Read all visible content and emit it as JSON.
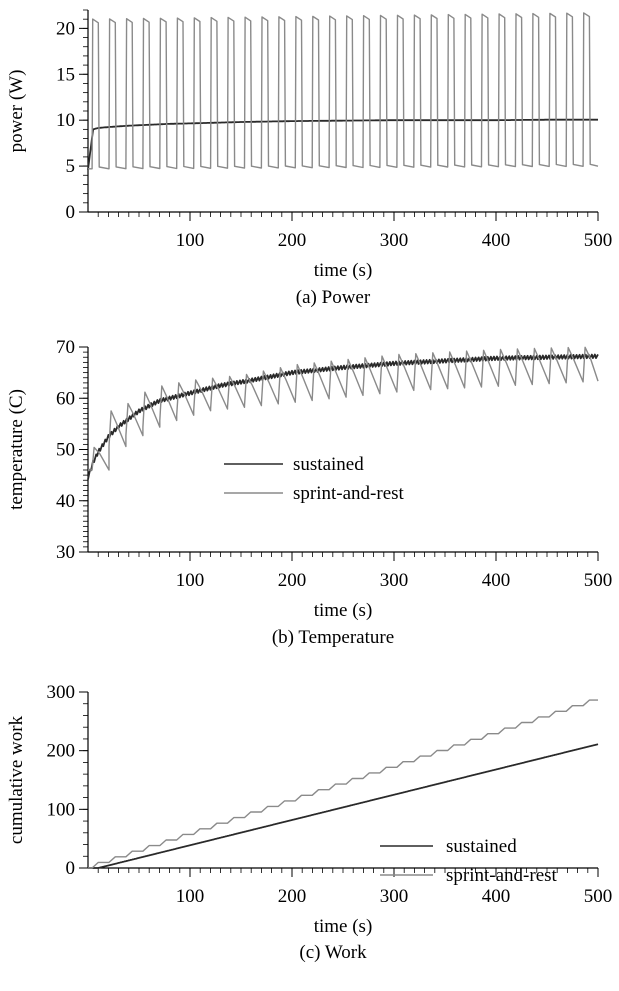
{
  "chart_data": [
    {
      "id": "power",
      "type": "line",
      "caption": "(a) Power",
      "xlabel": "time (s)",
      "ylabel": "power (W)",
      "xlim": [
        0,
        500
      ],
      "ylim": [
        0,
        22
      ],
      "xticks": [
        100,
        200,
        300,
        400,
        500
      ],
      "yticks": [
        0,
        5,
        10,
        15,
        20
      ],
      "legend": null,
      "series": [
        {
          "color": "#2a2a2a",
          "kind": "curve",
          "x": [
            0,
            5,
            10,
            20,
            40,
            60,
            80,
            100,
            150,
            200,
            250,
            300,
            350,
            400,
            450,
            500
          ],
          "values": [
            4.6,
            9.0,
            9.15,
            9.25,
            9.4,
            9.5,
            9.6,
            9.65,
            9.8,
            9.9,
            9.95,
            10.0,
            10.0,
            10.0,
            10.05,
            10.05
          ]
        },
        {
          "color": "#8a8a8a",
          "kind": "square-wave",
          "period_s": 16.6,
          "duty": 0.37,
          "start_s": 4,
          "high_W": 21.0,
          "high_end_W": 21.7,
          "low_W": 4.7,
          "low_end_W": 5.0
        }
      ]
    },
    {
      "id": "temperature",
      "type": "line",
      "caption": "(b) Temperature",
      "xlabel": "time (s)",
      "ylabel": "temperature (C)",
      "xlim": [
        0,
        500
      ],
      "ylim": [
        30,
        70
      ],
      "xticks": [
        100,
        200,
        300,
        400,
        500
      ],
      "yticks": [
        30,
        40,
        50,
        60,
        70
      ],
      "legend": {
        "position": "center",
        "entries": [
          "sustained",
          "sprint-and-rest"
        ]
      },
      "series": [
        {
          "name": "sustained",
          "color": "#2a2a2a",
          "kind": "curve",
          "x": [
            0,
            5,
            10,
            20,
            30,
            50,
            70,
            100,
            130,
            160,
            200,
            250,
            300,
            350,
            400,
            450,
            500
          ],
          "values": [
            44.5,
            47.5,
            49.5,
            52.5,
            54.5,
            57.5,
            59.5,
            61.0,
            62.5,
            63.5,
            65.0,
            66.0,
            66.8,
            67.3,
            67.8,
            68.0,
            68.2
          ]
        },
        {
          "name": "sprint-and-rest",
          "color": "#8a8a8a",
          "kind": "sawtooth",
          "period_s": 16.6,
          "start_s": 4,
          "x": [
            0,
            10,
            30,
            60,
            100,
            150,
            200,
            250,
            300,
            350,
            400,
            450,
            500
          ],
          "peak": [
            46,
            57,
            58,
            62,
            63.5,
            64.5,
            66.5,
            67.5,
            68.5,
            69,
            69.5,
            69.8,
            70
          ],
          "trough": [
            44,
            49,
            52,
            55,
            57.5,
            58.5,
            59.5,
            60.5,
            61.5,
            62,
            62.5,
            63,
            63.5
          ]
        }
      ]
    },
    {
      "id": "work",
      "type": "line",
      "caption": "(c) Work",
      "xlabel": "time (s)",
      "ylabel": "cumulative work",
      "xlim": [
        0,
        500
      ],
      "ylim": [
        0,
        300
      ],
      "xticks": [
        100,
        200,
        300,
        400,
        500
      ],
      "yticks": [
        0,
        100,
        200,
        300
      ],
      "legend": {
        "position": "bottom-right",
        "entries": [
          "sustained",
          "sprint-and-rest"
        ]
      },
      "series": [
        {
          "name": "sustained",
          "color": "#2a2a2a",
          "kind": "curve",
          "x": [
            0,
            10,
            500
          ],
          "values": [
            0,
            0,
            211
          ]
        },
        {
          "name": "sprint-and-rest",
          "color": "#8a8a8a",
          "kind": "staircase",
          "period_s": 16.6,
          "duty": 0.37,
          "start_s": 4,
          "total_at_end": 285
        }
      ]
    }
  ]
}
